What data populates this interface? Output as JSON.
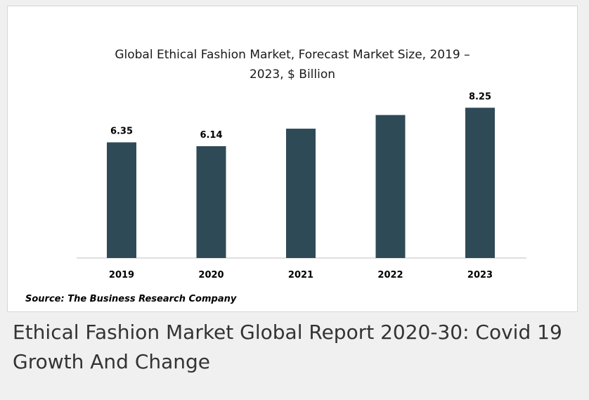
{
  "chart_data": {
    "type": "bar",
    "title_lines": [
      "Global Ethical Fashion Market, Forecast Market Size, 2019 –",
      "2023, $ Billion"
    ],
    "categories": [
      "2019",
      "2020",
      "2021",
      "2022",
      "2023"
    ],
    "values": [
      6.35,
      6.14,
      7.1,
      7.85,
      8.25
    ],
    "data_labels": [
      "6.35",
      "6.14",
      "",
      "",
      "8.25"
    ],
    "bar_color": "#2e4a56",
    "xlabel": "",
    "ylabel": "",
    "ylim": [
      0,
      8.8
    ],
    "grid": false,
    "legend": "none"
  },
  "source": "Source: The Business Research Company",
  "caption": "Ethical Fashion Market Global Report 2020-30: Covid 19 Growth And Change"
}
